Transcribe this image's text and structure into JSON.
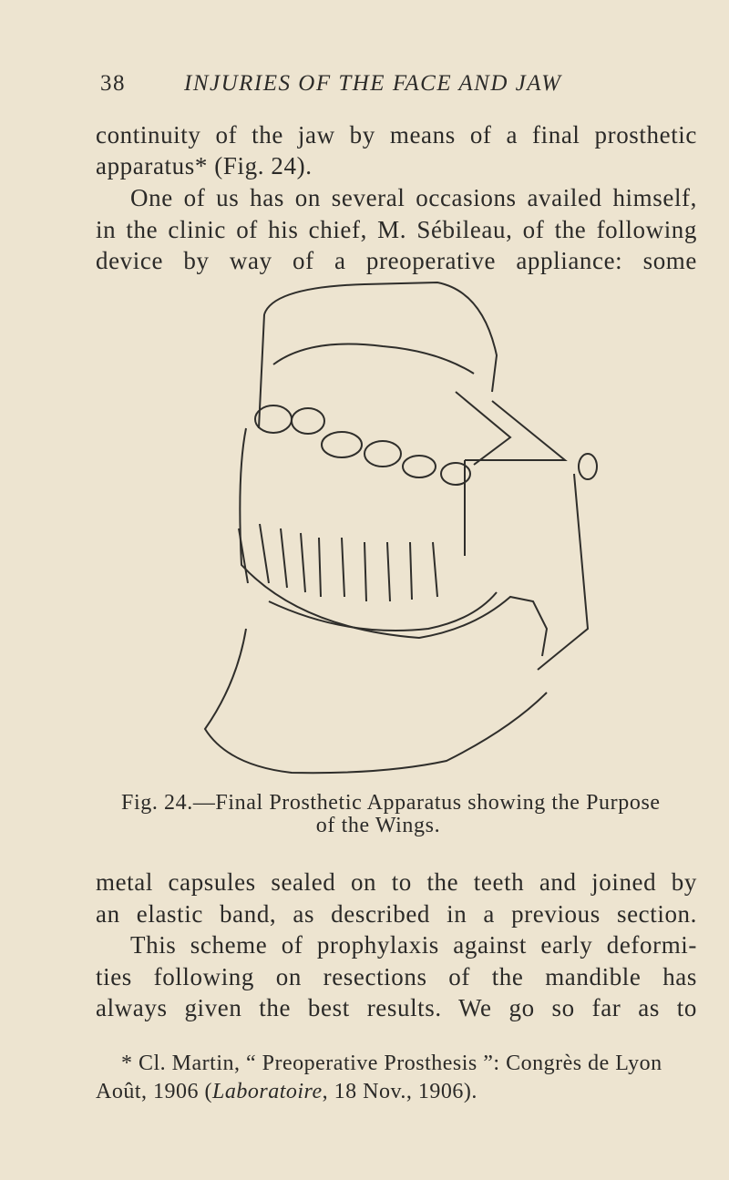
{
  "header": {
    "page_number": "38",
    "running_title": "INJURIES OF THE FACE AND JAW"
  },
  "paragraph_1": {
    "lines": [
      "continuity of the jaw by means of a final prosthetic",
      "apparatus* (Fig. 24)."
    ]
  },
  "paragraph_2": {
    "lines": [
      "One of us has on several occasions availed himself,",
      "in the clinic of his chief, M. Sébileau, of the following",
      "device by way of a preoperative appliance: some"
    ]
  },
  "figure": {
    "caption": [
      "Fig. 24.—Final Prosthetic Apparatus showing the Purpose",
      "of the Wings."
    ]
  },
  "paragraph_3": {
    "lines": [
      "metal capsules sealed on to the teeth and joined by",
      "an elastic band, as described in a previous section."
    ]
  },
  "paragraph_4": {
    "lines": [
      "This scheme of prophylaxis against early deformi-",
      "ties following on resections of the mandible has",
      "always given the best results.  We go so far as to"
    ]
  },
  "footnote": {
    "lines": [
      [
        "* Cl. Martin, “ Preoperative Prosthesis ”: Congrès de Lyon"
      ],
      [
        "Août, 1906 (",
        "Laboratoire",
        ", 18 Nov., 1906)."
      ]
    ]
  }
}
